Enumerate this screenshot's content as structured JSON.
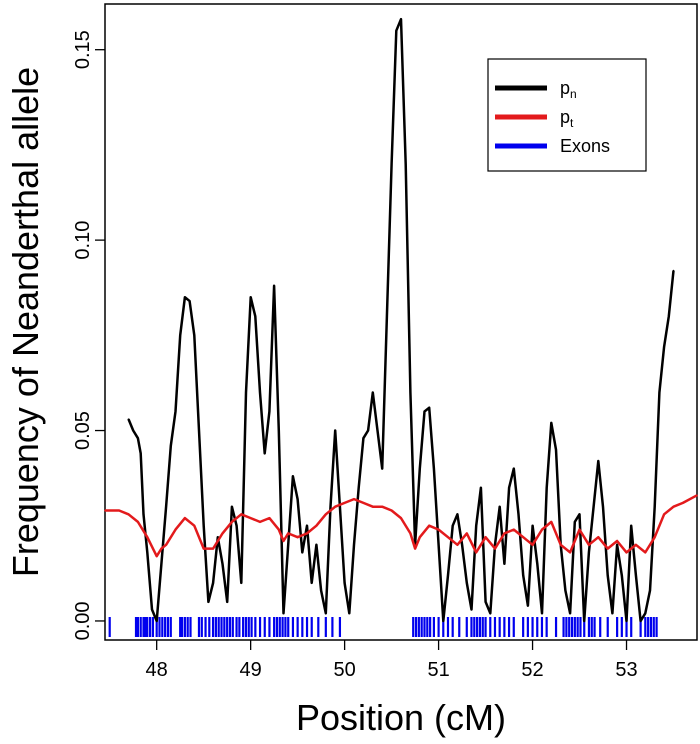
{
  "chart_data": {
    "type": "line",
    "title": "",
    "xlabel": "Position (cM)",
    "ylabel": "Frequency of Neanderthal allele",
    "xlim": [
      47.45,
      53.75
    ],
    "ylim": [
      -0.005,
      0.162
    ],
    "x_ticks": [
      48,
      49,
      50,
      51,
      52,
      53
    ],
    "x_tick_labels": [
      "48",
      "49",
      "50",
      "51",
      "52",
      "53"
    ],
    "y_ticks": [
      0.0,
      0.05,
      0.1,
      0.15
    ],
    "y_tick_labels": [
      "0.00",
      "0.05",
      "0.10",
      "0.15"
    ],
    "grid": false,
    "legend_position": "top-right",
    "legend": [
      {
        "main": "p",
        "sub": "n",
        "color": "#000000"
      },
      {
        "main": "p",
        "sub": "t",
        "color": "#e31a1c"
      },
      {
        "main": "Exons",
        "sub": "",
        "color": "#0000ee"
      }
    ],
    "series": [
      {
        "name": "pn",
        "color": "#000000",
        "x": [
          47.7,
          47.75,
          47.8,
          47.83,
          47.86,
          47.9,
          47.95,
          48.0,
          48.05,
          48.1,
          48.15,
          48.2,
          48.25,
          48.3,
          48.35,
          48.4,
          48.45,
          48.5,
          48.55,
          48.6,
          48.65,
          48.7,
          48.75,
          48.8,
          48.85,
          48.9,
          48.95,
          49.0,
          49.05,
          49.1,
          49.15,
          49.2,
          49.25,
          49.3,
          49.35,
          49.4,
          49.45,
          49.5,
          49.55,
          49.6,
          49.65,
          49.7,
          49.75,
          49.8,
          49.85,
          49.9,
          49.95,
          50.0,
          50.05,
          50.1,
          50.15,
          50.2,
          50.25,
          50.3,
          50.35,
          50.4,
          50.45,
          50.5,
          50.55,
          50.6,
          50.65,
          50.7,
          50.75,
          50.8,
          50.85,
          50.9,
          50.95,
          51.0,
          51.05,
          51.1,
          51.15,
          51.2,
          51.25,
          51.3,
          51.35,
          51.4,
          51.45,
          51.5,
          51.55,
          51.6,
          51.65,
          51.7,
          51.75,
          51.8,
          51.85,
          51.9,
          51.95,
          52.0,
          52.05,
          52.1,
          52.15,
          52.2,
          52.25,
          52.3,
          52.35,
          52.4,
          52.45,
          52.5,
          52.55,
          52.6,
          52.65,
          52.7,
          52.75,
          52.8,
          52.85,
          52.9,
          52.95,
          53.0,
          53.05,
          53.1,
          53.15,
          53.2,
          53.25,
          53.3,
          53.35,
          53.4,
          53.45,
          53.5
        ],
        "y": [
          0.053,
          0.05,
          0.048,
          0.044,
          0.028,
          0.018,
          0.003,
          0.0,
          0.015,
          0.03,
          0.046,
          0.055,
          0.075,
          0.085,
          0.084,
          0.075,
          0.05,
          0.025,
          0.005,
          0.01,
          0.022,
          0.015,
          0.005,
          0.03,
          0.025,
          0.01,
          0.06,
          0.085,
          0.08,
          0.06,
          0.044,
          0.055,
          0.088,
          0.05,
          0.002,
          0.02,
          0.038,
          0.032,
          0.018,
          0.025,
          0.01,
          0.02,
          0.008,
          0.002,
          0.03,
          0.05,
          0.03,
          0.01,
          0.002,
          0.02,
          0.035,
          0.048,
          0.05,
          0.06,
          0.05,
          0.04,
          0.08,
          0.12,
          0.155,
          0.158,
          0.12,
          0.06,
          0.02,
          0.04,
          0.055,
          0.056,
          0.04,
          0.02,
          0.0,
          0.012,
          0.025,
          0.028,
          0.02,
          0.01,
          0.003,
          0.025,
          0.035,
          0.005,
          0.002,
          0.02,
          0.03,
          0.015,
          0.035,
          0.04,
          0.028,
          0.012,
          0.004,
          0.025,
          0.015,
          0.002,
          0.035,
          0.052,
          0.045,
          0.02,
          0.008,
          0.002,
          0.026,
          0.028,
          0.0,
          0.018,
          0.03,
          0.042,
          0.03,
          0.012,
          0.002,
          0.02,
          0.012,
          0.0,
          0.025,
          0.012,
          0.0,
          0.002,
          0.008,
          0.03,
          0.06,
          0.072,
          0.08,
          0.092
        ]
      },
      {
        "name": "pt",
        "color": "#e31a1c",
        "x": [
          47.45,
          47.6,
          47.7,
          47.8,
          47.9,
          48.0,
          48.05,
          48.1,
          48.2,
          48.3,
          48.4,
          48.5,
          48.6,
          48.7,
          48.8,
          48.9,
          49.0,
          49.1,
          49.2,
          49.3,
          49.35,
          49.4,
          49.5,
          49.6,
          49.7,
          49.8,
          49.9,
          50.0,
          50.1,
          50.2,
          50.3,
          50.4,
          50.5,
          50.6,
          50.7,
          50.75,
          50.8,
          50.9,
          51.0,
          51.1,
          51.2,
          51.3,
          51.4,
          51.5,
          51.6,
          51.7,
          51.8,
          51.9,
          52.0,
          52.1,
          52.2,
          52.3,
          52.4,
          52.5,
          52.6,
          52.7,
          52.8,
          52.9,
          53.0,
          53.1,
          53.2,
          53.3,
          53.4,
          53.5,
          53.6,
          53.75
        ],
        "y": [
          0.029,
          0.029,
          0.028,
          0.026,
          0.022,
          0.017,
          0.019,
          0.02,
          0.024,
          0.027,
          0.025,
          0.019,
          0.019,
          0.023,
          0.026,
          0.028,
          0.027,
          0.026,
          0.027,
          0.024,
          0.021,
          0.023,
          0.022,
          0.023,
          0.025,
          0.028,
          0.03,
          0.031,
          0.032,
          0.031,
          0.03,
          0.03,
          0.029,
          0.027,
          0.023,
          0.019,
          0.022,
          0.025,
          0.024,
          0.022,
          0.02,
          0.023,
          0.018,
          0.022,
          0.019,
          0.023,
          0.024,
          0.022,
          0.02,
          0.024,
          0.026,
          0.02,
          0.018,
          0.024,
          0.02,
          0.022,
          0.019,
          0.021,
          0.018,
          0.02,
          0.018,
          0.022,
          0.028,
          0.03,
          0.031,
          0.033
        ]
      }
    ],
    "exons": [
      47.5,
      47.78,
      47.8,
      47.83,
      47.86,
      47.88,
      47.9,
      47.93,
      47.96,
      48.0,
      48.03,
      48.06,
      48.09,
      48.12,
      48.15,
      48.25,
      48.27,
      48.3,
      48.33,
      48.36,
      48.45,
      48.48,
      48.52,
      48.56,
      48.6,
      48.63,
      48.66,
      48.69,
      48.72,
      48.75,
      48.78,
      48.81,
      48.85,
      48.88,
      48.92,
      48.95,
      48.98,
      49.01,
      49.05,
      49.1,
      49.15,
      49.2,
      49.25,
      49.28,
      49.31,
      49.34,
      49.37,
      49.4,
      49.45,
      49.5,
      49.55,
      49.6,
      49.65,
      49.72,
      49.8,
      49.87,
      49.95,
      50.73,
      50.76,
      50.79,
      50.82,
      50.85,
      50.88,
      50.91,
      50.95,
      51.0,
      51.05,
      51.1,
      51.15,
      51.22,
      51.3,
      51.35,
      51.38,
      51.41,
      51.44,
      51.47,
      51.5,
      51.55,
      51.6,
      51.65,
      51.7,
      51.75,
      51.8,
      51.9,
      51.95,
      52.0,
      52.05,
      52.1,
      52.15,
      52.25,
      52.33,
      52.36,
      52.39,
      52.42,
      52.45,
      52.48,
      52.51,
      52.55,
      52.6,
      52.63,
      52.66,
      52.72,
      52.8,
      52.9,
      52.95,
      53.0,
      53.05,
      53.15,
      53.2,
      53.23,
      53.26,
      53.29,
      53.32
    ]
  }
}
